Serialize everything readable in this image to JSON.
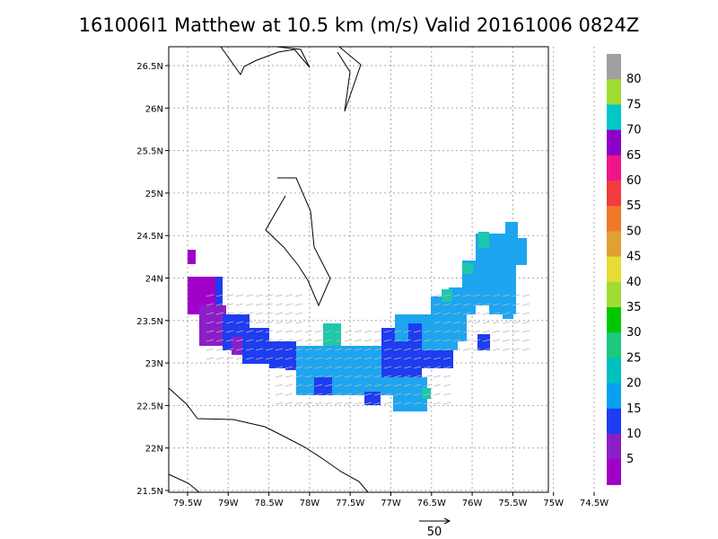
{
  "title": "161006I1 Matthew at 10.5 km (m/s) Valid 20161006 0824Z",
  "lat_labels": [
    "26.5N",
    "26N",
    "25.5N",
    "25N",
    "24.5N",
    "24N",
    "23.5N",
    "23N",
    "22.5N",
    "22N",
    "21.5N"
  ],
  "lon_labels": [
    "79.5W",
    "79W",
    "78.5W",
    "78W",
    "77.5W",
    "77W",
    "76.5W",
    "76W",
    "75.5W",
    "75W",
    "74.5W"
  ],
  "colorbar": {
    "labels": [
      "80",
      "75",
      "70",
      "65",
      "60",
      "55",
      "50",
      "45",
      "40",
      "35",
      "30",
      "25",
      "20",
      "15",
      "10",
      "5"
    ],
    "colors": [
      "#a0a0a0",
      "#a0dc32",
      "#00c8c8",
      "#8c00c8",
      "#f0148c",
      "#f03c3c",
      "#f07828",
      "#e1a032",
      "#e6dc32",
      "#a0dc32",
      "#00c800",
      "#1ec87d",
      "#00c0c0",
      "#0aa0f0",
      "#1e3cf0",
      "#8c1ec8",
      "#a000c8"
    ]
  },
  "reference_vector": "50",
  "wind_field": {
    "colors": {
      "cyan_blue": "#1ea5f0",
      "blue": "#1e3cf0",
      "purple": "#8c1ec8",
      "violet": "#a000c8",
      "teal": "#1ec8aa"
    }
  }
}
